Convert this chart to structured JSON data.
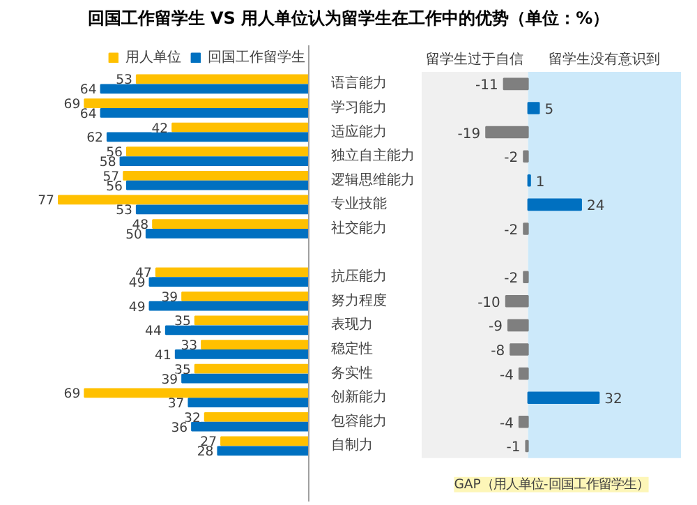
{
  "chart_data": [
    {
      "type": "bar",
      "orientation": "horizontal",
      "title": "回国工作留学生 VS 用人单位认为留学生在工作中的优势（单位：%）",
      "categories": [
        "语言能力",
        "学习能力",
        "适应能力",
        "独立自主能力",
        "逻辑思维能力",
        "专业技能",
        "社交能力",
        null,
        "抗压能力",
        "努力程度",
        "表现力",
        "稳定性",
        "务实性",
        "创新能力",
        "包容能力",
        "自制力"
      ],
      "series": [
        {
          "name": "用人单位",
          "color": "#ffc000",
          "values": [
            53,
            69,
            42,
            56,
            57,
            77,
            48,
            null,
            47,
            39,
            35,
            33,
            35,
            69,
            32,
            27
          ]
        },
        {
          "name": "回国工作留学生",
          "color": "#0070c0",
          "values": [
            64,
            64,
            62,
            58,
            56,
            53,
            50,
            null,
            49,
            49,
            44,
            41,
            39,
            37,
            36,
            28
          ]
        }
      ],
      "legend": "top",
      "data_labels": true,
      "tick_labels": "y",
      "grid": false
    },
    {
      "type": "bar",
      "orientation": "horizontal",
      "categories": [
        null,
        null,
        null,
        null,
        null,
        null,
        null,
        null,
        null,
        null,
        null,
        null,
        null,
        null,
        null,
        null
      ],
      "values": [
        -11,
        5,
        -19,
        -2,
        1,
        24,
        -2,
        null,
        -2,
        -10,
        -9,
        -8,
        -4,
        32,
        -4,
        -1
      ],
      "colors": [
        "#7f7f7f",
        "#0070c0",
        "#7f7f7f",
        "#7f7f7f",
        "#0070c0",
        "#0070c0",
        "#7f7f7f",
        null,
        "#7f7f7f",
        "#7f7f7f",
        "#7f7f7f",
        "#7f7f7f",
        "#7f7f7f",
        "#0070c0",
        "#7f7f7f",
        "#7f7f7f"
      ],
      "xlim": [
        -48,
        69
      ],
      "data_labels": true,
      "grid": false,
      "bands": [
        {
          "axis": "x",
          "from": -48,
          "to": 0,
          "label": "留学生过于自信",
          "color": "#f0f0f0"
        },
        {
          "axis": "x",
          "from": 0,
          "to": 69,
          "label": "留学生没有意识到",
          "color": "#cce9fa"
        }
      ],
      "annotations": [
        "GAP（用人单位-回国工作留学生）"
      ]
    }
  ]
}
